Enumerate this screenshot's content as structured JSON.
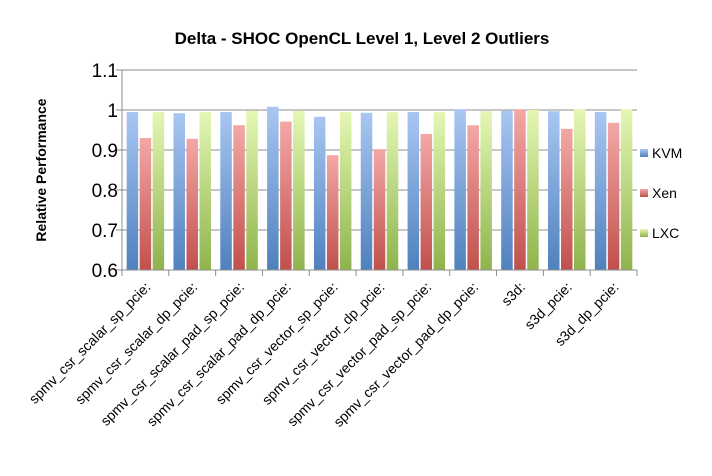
{
  "chart_data": {
    "type": "bar",
    "title": "Delta - SHOC OpenCL Level 1, Level 2 Outliers",
    "xlabel": "",
    "ylabel": "Relative Performance",
    "ylim": [
      0.6,
      1.1
    ],
    "yticks": [
      0.6,
      0.7,
      0.8,
      0.9,
      1,
      1.1
    ],
    "ytick_labels": [
      "0.6",
      "0.7",
      "0.8",
      "0.9",
      "1",
      "1.1"
    ],
    "grid": true,
    "legend_position": "right",
    "categories": [
      "spmv_csr_scalar_sp_pcie:",
      "spmv_csr_scalar_dp_pcie:",
      "spmv_csr_scalar_pad_sp_pcie:",
      "spmv_csr_scalar_pad_dp_pcie:",
      "spmv_csr_vector_sp_pcie:",
      "spmv_csr_vector_dp_pcie:",
      "spmv_csr_vector_pad_sp_pcie:",
      "spmv_csr_vector_pad_dp_pcie:",
      "s3d:",
      "s3d_pcie:",
      "s3d_dp_pcie:"
    ],
    "series": [
      {
        "name": "KVM",
        "color": "#4f81bd",
        "values": [
          0.995,
          0.992,
          0.995,
          1.008,
          0.983,
          0.993,
          0.995,
          1.002,
          0.998,
          0.997,
          0.995
        ]
      },
      {
        "name": "Xen",
        "color": "#c0504d",
        "values": [
          0.93,
          0.928,
          0.962,
          0.971,
          0.887,
          0.902,
          0.94,
          0.962,
          1.002,
          0.953,
          0.968
        ]
      },
      {
        "name": "LXC",
        "color": "#9bbb59",
        "values": [
          0.995,
          0.995,
          0.998,
          0.998,
          0.995,
          0.995,
          0.995,
          0.997,
          1.0,
          1.001,
          1.002
        ]
      }
    ]
  }
}
